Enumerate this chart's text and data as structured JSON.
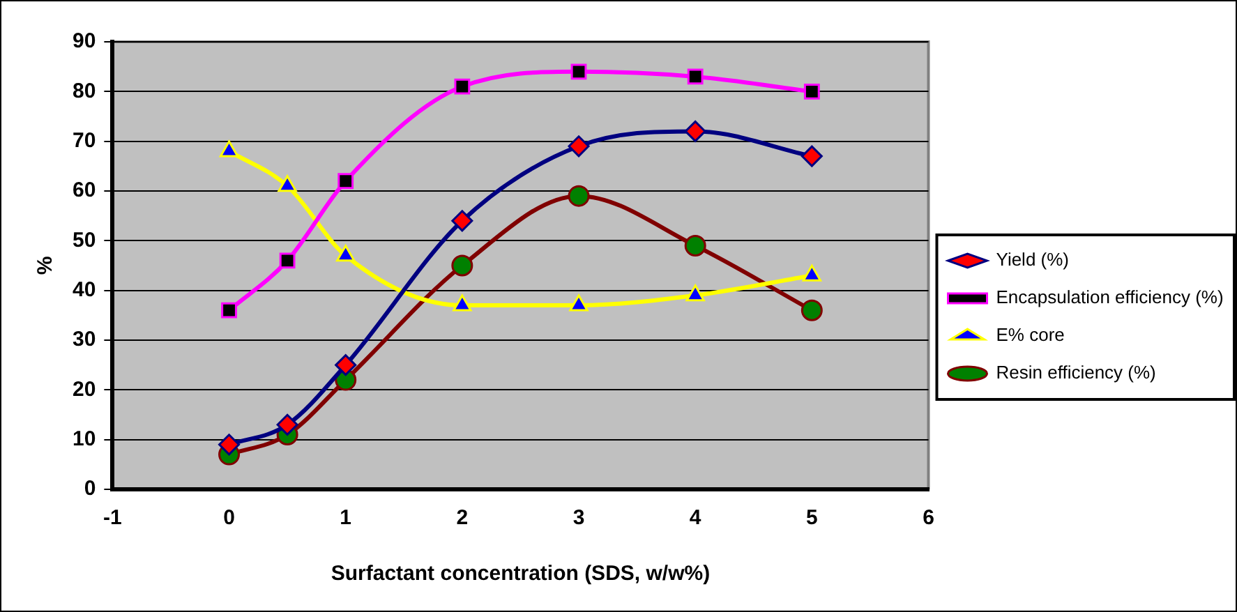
{
  "chart_data": {
    "type": "line",
    "xlabel": "Surfactant concentration (SDS, w/w%)",
    "ylabel": "%",
    "x": [
      0,
      0.5,
      1,
      2,
      3,
      4,
      5
    ],
    "xlim": [
      -1,
      6
    ],
    "xticks": [
      -1,
      0,
      1,
      2,
      3,
      4,
      5,
      6
    ],
    "ylim": [
      0,
      90
    ],
    "yticks": [
      0,
      10,
      20,
      30,
      40,
      50,
      60,
      70,
      80,
      90
    ],
    "grid": "y",
    "legend": "right",
    "series": [
      {
        "name": "Yield (%)",
        "color": "#000080",
        "marker": "diamond",
        "colors": [
          "#ff0000",
          "#ff0000",
          "#ff0000",
          "#ff0000",
          "#ff0000",
          "#ff0000",
          "#ff0000"
        ],
        "values": [
          9,
          13,
          25,
          54,
          69,
          72,
          67
        ]
      },
      {
        "name": "Encapsulation efficiency (%)",
        "color": "#ff00ff",
        "marker": "square",
        "colors": [
          "#000000",
          "#000000",
          "#000000",
          "#000000",
          "#000000",
          "#000000",
          "#000000"
        ],
        "values": [
          36,
          46,
          62,
          81,
          84,
          83,
          80
        ]
      },
      {
        "name": "E% core",
        "color": "#ffff00",
        "marker": "triangle",
        "colors": [
          "#0000ff",
          "#0000ff",
          "#0000ff",
          "#0000ff",
          "#0000ff",
          "#0000ff",
          "#0000ff"
        ],
        "values": [
          68,
          61,
          47,
          37,
          37,
          39,
          43
        ]
      },
      {
        "name": "Resin efficiency (%)",
        "color": "#800000",
        "marker": "circle",
        "colors": [
          "#008000",
          "#008000",
          "#008000",
          "#008000",
          "#008000",
          "#008000",
          "#008000"
        ],
        "values": [
          7,
          11,
          22,
          45,
          59,
          49,
          36
        ]
      }
    ]
  }
}
